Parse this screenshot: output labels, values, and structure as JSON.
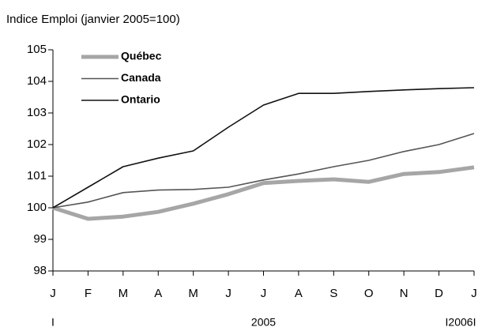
{
  "chart_data": {
    "type": "line",
    "title": "Indice Emploi (janvier 2005=100)",
    "categories": [
      "J",
      "F",
      "M",
      "A",
      "M",
      "J",
      "J",
      "A",
      "S",
      "O",
      "N",
      "D",
      "J"
    ],
    "period_labels": [
      "I",
      "2005",
      "I2006I"
    ],
    "series": [
      {
        "name": "Québec",
        "color": "#a6a6a6",
        "values": [
          100,
          99.65,
          99.72,
          99.87,
          100.13,
          100.43,
          100.78,
          100.85,
          100.9,
          100.82,
          101.07,
          101.13,
          101.28
        ]
      },
      {
        "name": "Canada",
        "color": "#555555",
        "values": [
          100,
          100.18,
          100.48,
          100.56,
          100.58,
          100.65,
          100.88,
          101.07,
          101.3,
          101.5,
          101.78,
          102.0,
          102.35
        ]
      },
      {
        "name": "Ontario",
        "color": "#111111",
        "values": [
          100,
          100.65,
          101.3,
          101.57,
          101.8,
          102.55,
          103.25,
          103.62,
          103.62,
          103.68,
          103.73,
          103.77,
          103.8
        ]
      }
    ],
    "ylim": [
      98,
      105
    ],
    "yticks": [
      98,
      99,
      100,
      101,
      102,
      103,
      104,
      105
    ],
    "legend": "upper left",
    "grid": false
  }
}
